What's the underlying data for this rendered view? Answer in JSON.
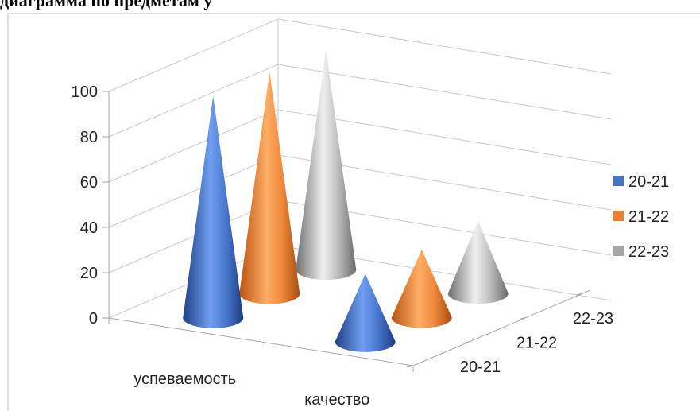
{
  "header_text": "диаграмма по предметам                              у",
  "chart_data": {
    "type": "3d-cone",
    "categories": [
      "успеваемость",
      "качество"
    ],
    "depth_categories": [
      "20-21",
      "21-22",
      "22-23"
    ],
    "series": [
      {
        "name": "20-21",
        "values": [
          98,
          30
        ],
        "color": "#4472C4"
      },
      {
        "name": "21-22",
        "values": [
          98,
          30
        ],
        "color": "#ED7D31"
      },
      {
        "name": "22-23",
        "values": [
          97,
          32
        ],
        "color": "#A5A5A5"
      }
    ],
    "ylim": [
      0,
      100
    ],
    "y_ticks": [
      "0",
      "20",
      "40",
      "60",
      "80",
      "100"
    ],
    "grid": true,
    "legend_position": "right"
  }
}
